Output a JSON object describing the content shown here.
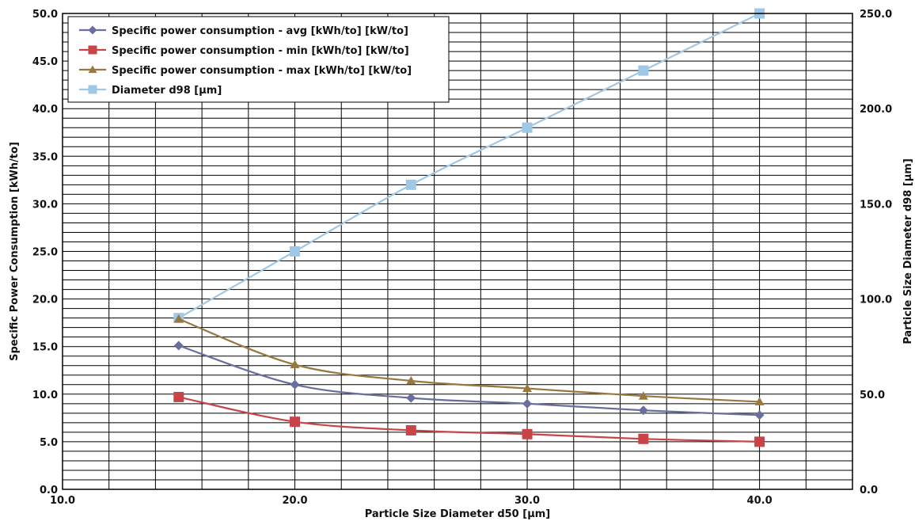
{
  "chart_data": {
    "type": "line",
    "title": "",
    "xlabel": "Particle Size Diameter d50 [µm]",
    "ylabel": "Specific Power Consumption [kWh/to]",
    "y2label": "Particle Size Diameter d98 [µm]",
    "xlim": [
      10,
      44
    ],
    "ylim": [
      0,
      50
    ],
    "y2lim": [
      0,
      250
    ],
    "x_ticks": [
      10,
      20,
      30,
      40
    ],
    "x_tick_labels": [
      "10.0",
      "20.0",
      "30.0",
      "40.0"
    ],
    "y_ticks": [
      0,
      5,
      10,
      15,
      20,
      25,
      30,
      35,
      40,
      45,
      50
    ],
    "y_tick_labels": [
      "0.0",
      "5.0",
      "10.0",
      "15.0",
      "20.0",
      "25.0",
      "30.0",
      "35.0",
      "40.0",
      "45.0",
      "50.0"
    ],
    "y2_ticks": [
      0,
      50,
      100,
      150,
      200,
      250
    ],
    "y2_tick_labels": [
      "0.0",
      "50.0",
      "100.0",
      "150.0",
      "200.0",
      "250.0"
    ],
    "x_minor_step": 2,
    "y_minor_step": 1,
    "grid": true,
    "legend_position": "top-left",
    "series": [
      {
        "name": "Specific power consumption - avg [kWh/to] [kW/to]",
        "axis": "left",
        "marker": "diamond",
        "color": "#6a6e9f",
        "x": [
          15,
          20,
          25,
          30,
          35,
          40
        ],
        "values": [
          15.1,
          11.0,
          9.6,
          9.0,
          8.3,
          7.8
        ]
      },
      {
        "name": "Specific power consumption - min [kWh/to] [kW/to]",
        "axis": "left",
        "marker": "square",
        "color": "#c94448",
        "x": [
          15,
          20,
          25,
          30,
          35,
          40
        ],
        "values": [
          9.7,
          7.1,
          6.2,
          5.8,
          5.3,
          5.0
        ]
      },
      {
        "name": "Specific power consumption - max [kWh/to] [kW/to]",
        "axis": "left",
        "marker": "triangle",
        "color": "#97783e",
        "x": [
          15,
          20,
          25,
          30,
          35,
          40
        ],
        "values": [
          17.9,
          13.1,
          11.4,
          10.6,
          9.8,
          9.2
        ]
      },
      {
        "name": "Diameter d98 [µm]",
        "axis": "right",
        "marker": "square",
        "color": "#9ec8e6",
        "x": [
          15,
          20,
          25,
          30,
          35,
          40
        ],
        "values": [
          90,
          125,
          160,
          190,
          220,
          250
        ]
      }
    ]
  }
}
